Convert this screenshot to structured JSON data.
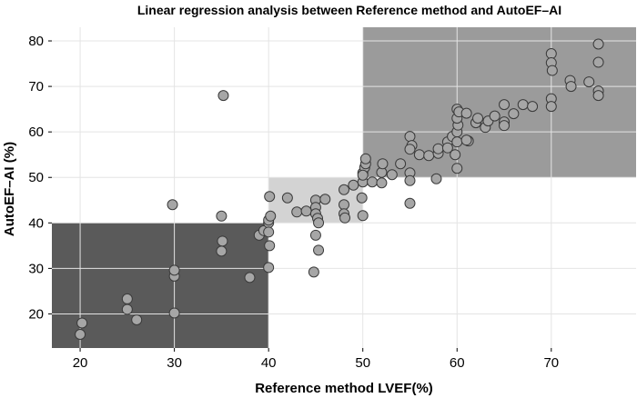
{
  "chart_data": {
    "type": "scatter",
    "title": "Linear regression analysis between Reference method and AutoEF–AI",
    "xlabel": "Reference method LVEF(%)",
    "ylabel": "AutoEF–AI (%)",
    "xlim": [
      17,
      79
    ],
    "ylim": [
      12.5,
      83
    ],
    "xticks": [
      20,
      30,
      40,
      50,
      60,
      70
    ],
    "yticks": [
      20,
      30,
      40,
      50,
      60,
      70,
      80
    ],
    "grid": true,
    "regions": [
      {
        "x": [
          17,
          40
        ],
        "y": [
          12.5,
          40
        ],
        "color": "#5a5a5a"
      },
      {
        "x": [
          40,
          50
        ],
        "y": [
          40,
          50
        ],
        "color": "#d3d3d3"
      },
      {
        "x": [
          50,
          79
        ],
        "y": [
          50,
          83
        ],
        "color": "#9b9b9b"
      }
    ],
    "colors": {
      "point_fill": "#a6a6a6",
      "point_edge": "#3a3a3a"
    },
    "points": [
      [
        20,
        15.5
      ],
      [
        20.2,
        18
      ],
      [
        25,
        21
      ],
      [
        25,
        23.3
      ],
      [
        26,
        18.7
      ],
      [
        29.8,
        44
      ],
      [
        30,
        28.3
      ],
      [
        30,
        29.6
      ],
      [
        30,
        20.2
      ],
      [
        35,
        41.5
      ],
      [
        35.1,
        36
      ],
      [
        35.2,
        68
      ],
      [
        35,
        33.8
      ],
      [
        38,
        28
      ],
      [
        39,
        37.3
      ],
      [
        39.5,
        38.3
      ],
      [
        40,
        40
      ],
      [
        40,
        40.6
      ],
      [
        40.2,
        41.5
      ],
      [
        40.1,
        45.8
      ],
      [
        40,
        38
      ],
      [
        40.1,
        35
      ],
      [
        40,
        30.2
      ],
      [
        42,
        45.5
      ],
      [
        43,
        42.4
      ],
      [
        44,
        42.6
      ],
      [
        45,
        45
      ],
      [
        45,
        43.4
      ],
      [
        45,
        42
      ],
      [
        45.2,
        41
      ],
      [
        45.3,
        40
      ],
      [
        45,
        37.3
      ],
      [
        45.3,
        34
      ],
      [
        44.8,
        29.2
      ],
      [
        46,
        45.2
      ],
      [
        48,
        47.3
      ],
      [
        48,
        44
      ],
      [
        48,
        42
      ],
      [
        48.1,
        41.1
      ],
      [
        49,
        48.3
      ],
      [
        50,
        49
      ],
      [
        49.9,
        45.5
      ],
      [
        50,
        41.6
      ],
      [
        50,
        51
      ],
      [
        50.2,
        52.2
      ],
      [
        50.3,
        53
      ],
      [
        50.3,
        54.1
      ],
      [
        50,
        50.5
      ],
      [
        51,
        49
      ],
      [
        52,
        48.8
      ],
      [
        52,
        51.1
      ],
      [
        52.1,
        53
      ],
      [
        53.1,
        50.6
      ],
      [
        54,
        53
      ],
      [
        55,
        59
      ],
      [
        55.2,
        57
      ],
      [
        55,
        56.2
      ],
      [
        55,
        51
      ],
      [
        55,
        49.3
      ],
      [
        55,
        44.3
      ],
      [
        56,
        55
      ],
      [
        57,
        54.8
      ],
      [
        58,
        55.3
      ],
      [
        58,
        56.3
      ],
      [
        57.8,
        49.7
      ],
      [
        59,
        57.8
      ],
      [
        59,
        56.5
      ],
      [
        59.5,
        59
      ],
      [
        60,
        60
      ],
      [
        60.1,
        61.5
      ],
      [
        60,
        63
      ],
      [
        60,
        65
      ],
      [
        60.2,
        64.4
      ],
      [
        60,
        57.8
      ],
      [
        59.8,
        55
      ],
      [
        60,
        52
      ],
      [
        61,
        64.1
      ],
      [
        61.2,
        58
      ],
      [
        61,
        58.2
      ],
      [
        62,
        62
      ],
      [
        62.2,
        63
      ],
      [
        63,
        61
      ],
      [
        63.3,
        62.4
      ],
      [
        64,
        63.5
      ],
      [
        65,
        66
      ],
      [
        65,
        62.2
      ],
      [
        65,
        61.4
      ],
      [
        66,
        64
      ],
      [
        67,
        66
      ],
      [
        68,
        65.6
      ],
      [
        70,
        77.2
      ],
      [
        70,
        75.2
      ],
      [
        70.1,
        73.5
      ],
      [
        70,
        67.3
      ],
      [
        70,
        65.6
      ],
      [
        72,
        71.3
      ],
      [
        72.1,
        70
      ],
      [
        74,
        71
      ],
      [
        75,
        79.3
      ],
      [
        75,
        75.3
      ],
      [
        75,
        69
      ],
      [
        75,
        68
      ]
    ]
  }
}
